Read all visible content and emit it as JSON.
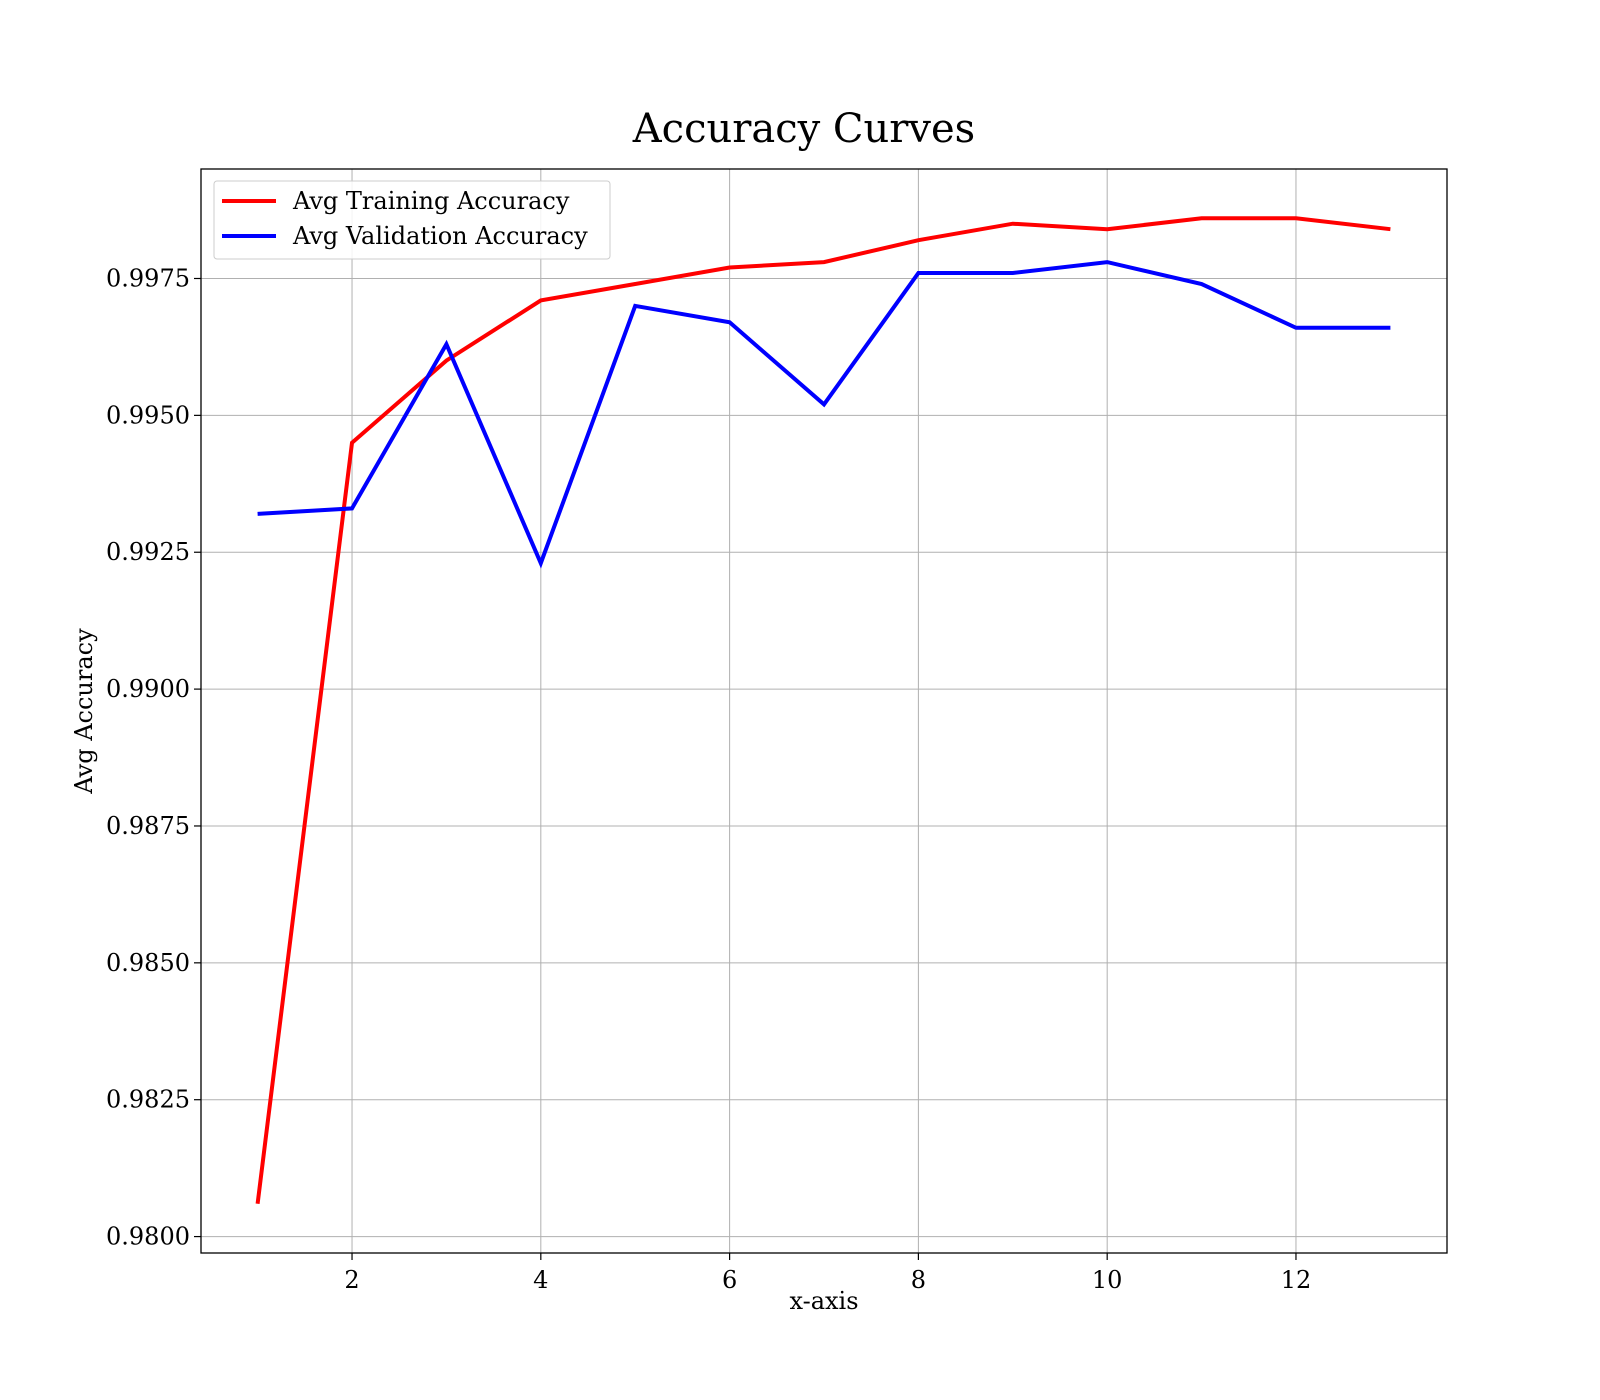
{
  "chart_data": {
    "type": "line",
    "title": "Accuracy Curves",
    "xlabel": "x-axis",
    "ylabel": "Avg Accuracy",
    "xlim": [
      0.4,
      13.6
    ],
    "ylim": [
      0.9797,
      0.9995
    ],
    "x_ticks": [
      2,
      4,
      6,
      8,
      10,
      12
    ],
    "y_ticks": [
      0.98,
      0.9825,
      0.985,
      0.9875,
      0.99,
      0.9925,
      0.995,
      0.9975
    ],
    "x_tick_labels": [
      "2",
      "4",
      "6",
      "8",
      "10",
      "12"
    ],
    "y_tick_labels": [
      "0.9800",
      "0.9825",
      "0.9850",
      "0.9875",
      "0.9900",
      "0.9925",
      "0.9950",
      "0.9975"
    ],
    "grid": true,
    "legend_position": "upper-left",
    "x": [
      1,
      2,
      3,
      4,
      5,
      6,
      7,
      8,
      9,
      10,
      11,
      12,
      13
    ],
    "series": [
      {
        "name": "Avg Training Accuracy",
        "color": "#ff0000",
        "values": [
          0.9806,
          0.9945,
          0.996,
          0.9971,
          0.9974,
          0.9977,
          0.9978,
          0.9982,
          0.9985,
          0.9984,
          0.9986,
          0.9986,
          0.9984
        ]
      },
      {
        "name": "Avg Validation Accuracy",
        "color": "#0000ff",
        "values": [
          0.9932,
          0.9933,
          0.9963,
          0.9923,
          0.997,
          0.9967,
          0.9952,
          0.9976,
          0.9976,
          0.9978,
          0.9974,
          0.9966,
          0.9966
        ]
      }
    ]
  }
}
